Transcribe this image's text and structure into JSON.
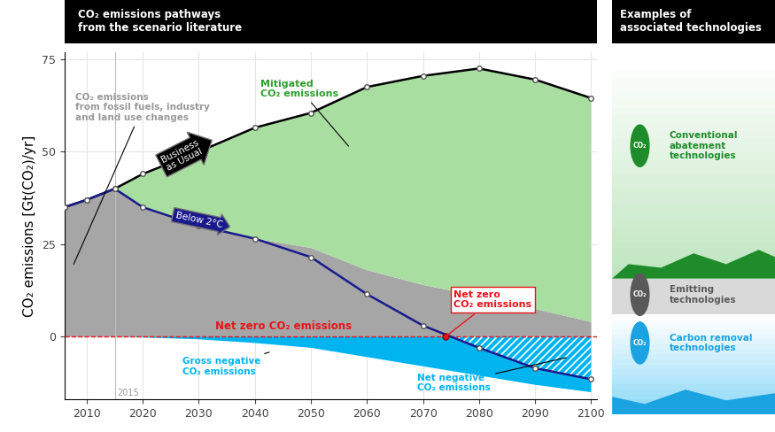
{
  "chart_data": {
    "type": "area",
    "title": "CO₂ emissions pathways\nfrom the scenario literature",
    "ylabel": "CO₂ emissions [Gt(CO₂)/yr]",
    "x": [
      2006,
      2010,
      2015,
      2020,
      2030,
      2040,
      2050,
      2060,
      2070,
      2080,
      2090,
      2100
    ],
    "xlim": [
      2006,
      2101
    ],
    "xticks": [
      2010,
      2020,
      2030,
      2040,
      2050,
      2060,
      2070,
      2080,
      2090,
      2100
    ],
    "ylim": [
      -17,
      77
    ],
    "yticks": [
      0,
      25,
      50,
      75
    ],
    "grid": true,
    "series": [
      {
        "name": "CO₂ emissions\nfrom fossil fuels, industry\nand land use changes",
        "type": "area",
        "color": "#a6a6a6",
        "values": [
          35,
          37,
          40,
          35,
          30,
          26.5,
          24,
          18,
          14,
          11,
          7.5,
          4
        ]
      },
      {
        "name": "Gross negative\nCO₂ emissions",
        "type": "area",
        "color": "#00b4f0",
        "values": [
          0,
          0,
          0,
          -0.2,
          -0.7,
          -1.7,
          -3,
          -5.5,
          -8,
          -10.5,
          -13,
          -15
        ]
      },
      {
        "name": "Business\nas Usual",
        "type": "line",
        "color": "#000000",
        "marker": "o",
        "values": [
          35,
          37,
          40,
          44,
          50,
          56.5,
          60.5,
          67.5,
          70.5,
          72.5,
          69.5,
          64.5
        ]
      },
      {
        "name": "Below 2°C",
        "type": "line",
        "color": "#1a1a8c",
        "marker": "o",
        "values": [
          35,
          37,
          40,
          35,
          30,
          26.5,
          21.5,
          11.5,
          3,
          -3,
          -8.5,
          -11.5
        ]
      }
    ],
    "mitigated": {
      "label": "Mitigated\nCO₂ emissions",
      "color": "#a9dea1"
    },
    "net_zero_line": {
      "y": 0,
      "label": "Net zero CO₂ emissions",
      "color": "#e8141b"
    },
    "net_zero_point": {
      "x": 2074,
      "y": 0,
      "label": "Net zero\nCO₂ emissions",
      "color": "#e8141b"
    },
    "net_negative": {
      "label": "Net negative\nCO₂ emissions"
    },
    "reference_year": {
      "x": 2015,
      "label": "2015"
    }
  },
  "panel": {
    "title": "Examples of\nassociated technologies",
    "items": [
      {
        "label": "Conventional\nabatement\ntechnologies",
        "icon": "CO₂",
        "color": "#1e8c2a"
      },
      {
        "label": "Emitting\ntechnologies",
        "icon": "CO₂",
        "color": "#595959"
      },
      {
        "label": "Carbon removal\ntechnologies",
        "icon": "CO₂",
        "color": "#1aa3e0"
      }
    ]
  }
}
